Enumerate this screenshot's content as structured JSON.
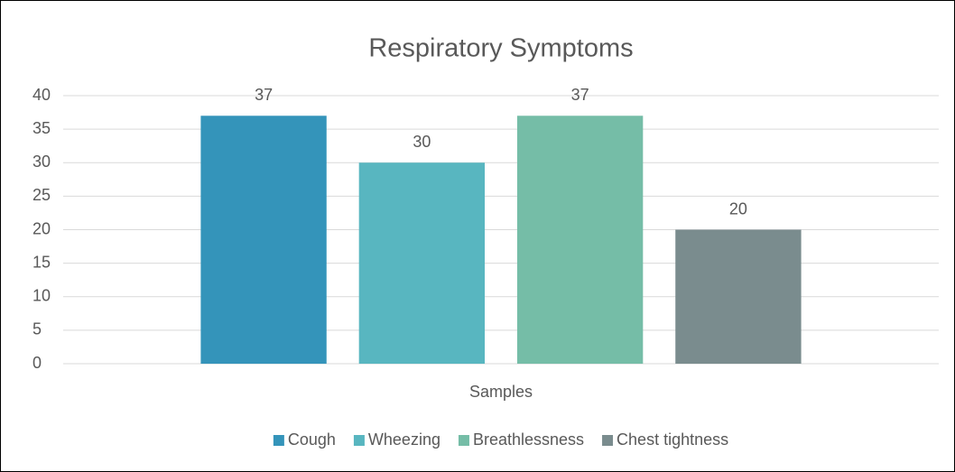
{
  "chart_data": {
    "type": "bar",
    "title": "Respiratory Symptoms",
    "categories": [
      "Samples"
    ],
    "series": [
      {
        "name": "Cough",
        "color": "#3494ba",
        "values": [
          37
        ]
      },
      {
        "name": "Wheezing",
        "color": "#58b6c0",
        "values": [
          30
        ]
      },
      {
        "name": "Breathlessness",
        "color": "#75bda7",
        "values": [
          37
        ]
      },
      {
        "name": "Chest tightness",
        "color": "#7a8c8e",
        "values": [
          20
        ]
      }
    ],
    "ylim": [
      0,
      40
    ],
    "yticks": [
      0,
      5,
      10,
      15,
      20,
      25,
      30,
      35,
      40
    ],
    "grid": true,
    "legend": "bottom"
  }
}
